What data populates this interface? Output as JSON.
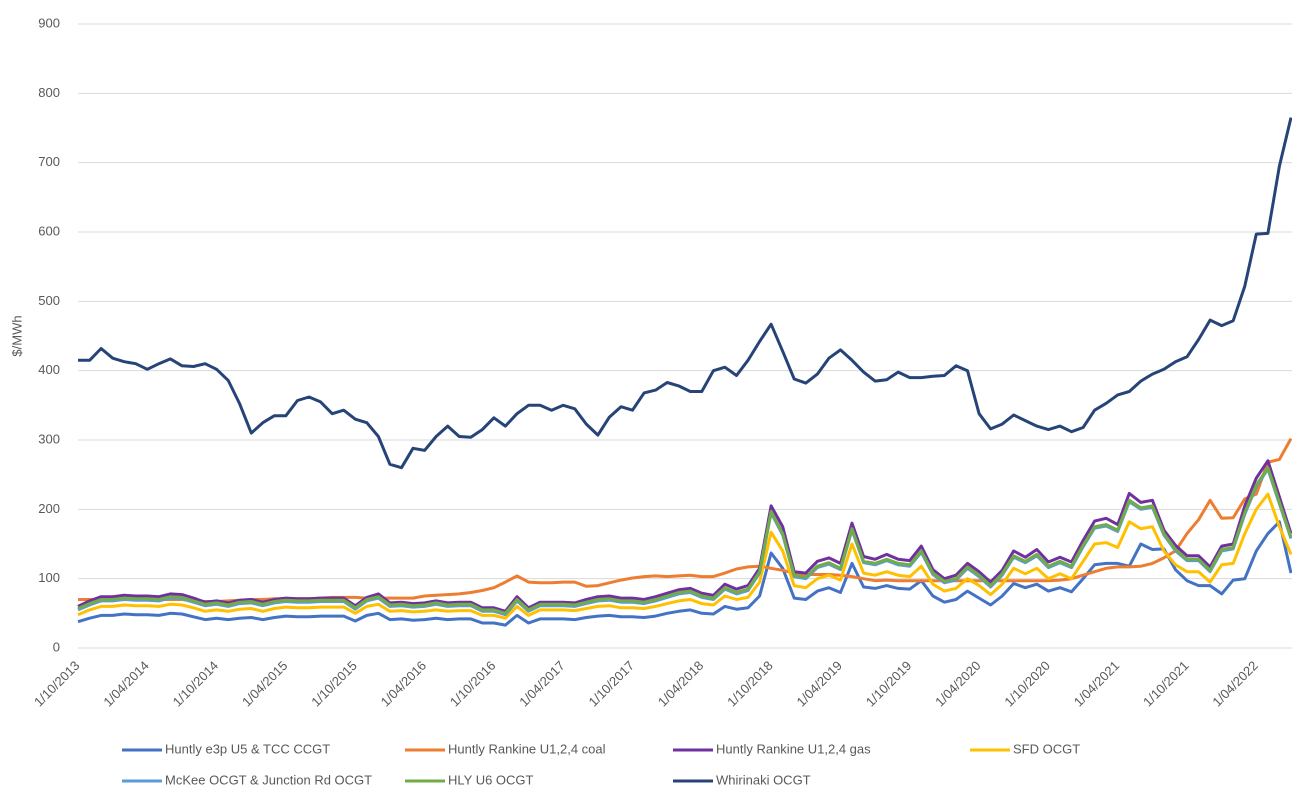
{
  "chart_data": {
    "type": "line",
    "y_label": "$/MWh",
    "ylim": [
      0,
      900
    ],
    "yticks": [
      0,
      100,
      200,
      300,
      400,
      500,
      600,
      700,
      800,
      900
    ],
    "grid": true,
    "categories": [
      "1/10/2013",
      null,
      null,
      null,
      null,
      null,
      "1/04/2014",
      null,
      null,
      null,
      null,
      null,
      "1/10/2014",
      null,
      null,
      null,
      null,
      null,
      "1/04/2015",
      null,
      null,
      null,
      null,
      null,
      "1/10/2015",
      null,
      null,
      null,
      null,
      null,
      "1/04/2016",
      null,
      null,
      null,
      null,
      null,
      "1/10/2016",
      null,
      null,
      null,
      null,
      null,
      "1/04/2017",
      null,
      null,
      null,
      null,
      null,
      "1/10/2017",
      null,
      null,
      null,
      null,
      null,
      "1/04/2018",
      null,
      null,
      null,
      null,
      null,
      "1/10/2018",
      null,
      null,
      null,
      null,
      null,
      "1/04/2019",
      null,
      null,
      null,
      null,
      null,
      "1/10/2019",
      null,
      null,
      null,
      null,
      null,
      "1/04/2020",
      null,
      null,
      null,
      null,
      null,
      "1/10/2020",
      null,
      null,
      null,
      null,
      null,
      "1/04/2021",
      null,
      null,
      null,
      null,
      null,
      "1/10/2021",
      null,
      null,
      null,
      null,
      null,
      "1/04/2022",
      null,
      null,
      null
    ],
    "series": [
      {
        "name": "Huntly e3p U5 & TCC CCGT",
        "color": "#4472c4",
        "values": [
          38,
          43,
          47,
          47,
          49,
          48,
          48,
          47,
          50,
          49,
          45,
          41,
          43,
          41,
          43,
          44,
          41,
          44,
          46,
          45,
          45,
          46,
          46,
          46,
          39,
          47,
          50,
          41,
          42,
          40,
          41,
          43,
          41,
          42,
          42,
          36,
          36,
          33,
          47,
          36,
          42,
          42,
          42,
          41,
          44,
          46,
          47,
          45,
          45,
          44,
          46,
          50,
          53,
          55,
          50,
          49,
          60,
          56,
          58,
          75,
          137,
          115,
          72,
          70,
          82,
          87,
          80,
          122,
          88,
          86,
          90,
          86,
          85,
          97,
          75,
          66,
          70,
          82,
          72,
          62,
          75,
          93,
          87,
          92,
          82,
          87,
          81,
          100,
          120,
          122,
          122,
          118,
          150,
          142,
          143,
          113,
          97,
          90,
          90,
          78,
          98,
          100,
          140,
          165,
          182,
          108
        ]
      },
      {
        "name": "Huntly Rankine U1,2,4 coal",
        "color": "#ed7d31",
        "values": [
          70,
          70,
          70,
          70,
          70,
          70,
          70,
          70,
          70,
          70,
          68,
          67,
          67,
          68,
          69,
          70,
          70,
          71,
          71,
          71,
          71,
          72,
          73,
          73,
          73,
          72,
          72,
          72,
          72,
          72,
          75,
          76,
          77,
          78,
          80,
          83,
          87,
          95,
          104,
          95,
          94,
          94,
          95,
          95,
          89,
          90,
          94,
          98,
          101,
          103,
          104,
          103,
          104,
          105,
          103,
          103,
          108,
          114,
          117,
          118,
          115,
          112,
          108,
          106,
          106,
          106,
          105,
          103,
          100,
          97,
          98,
          97,
          97,
          97,
          97,
          97,
          97,
          97,
          97,
          97,
          97,
          97,
          97,
          97,
          97,
          98,
          100,
          105,
          110,
          115,
          117,
          117,
          118,
          122,
          130,
          140,
          165,
          185,
          213,
          187,
          188,
          215,
          222,
          268,
          272,
          302
        ]
      },
      {
        "name": "Huntly Rankine U1,2,4 gas",
        "color": "#7030a0",
        "values": [
          60,
          68,
          74,
          74,
          76,
          75,
          75,
          74,
          78,
          77,
          72,
          66,
          68,
          65,
          69,
          70,
          66,
          70,
          72,
          71,
          71,
          72,
          72,
          72,
          61,
          73,
          78,
          65,
          66,
          64,
          65,
          68,
          65,
          66,
          66,
          58,
          58,
          53,
          74,
          58,
          66,
          66,
          66,
          65,
          70,
          74,
          75,
          72,
          72,
          70,
          74,
          79,
          84,
          86,
          79,
          76,
          92,
          85,
          90,
          115,
          205,
          175,
          110,
          108,
          125,
          130,
          122,
          180,
          132,
          128,
          135,
          128,
          126,
          147,
          113,
          100,
          105,
          122,
          110,
          95,
          112,
          140,
          131,
          142,
          124,
          131,
          124,
          155,
          183,
          187,
          178,
          223,
          210,
          213,
          170,
          148,
          133,
          133,
          117,
          147,
          150,
          205,
          245,
          270,
          218,
          165
        ]
      },
      {
        "name": "SFD OCGT",
        "color": "#ffc000",
        "values": [
          48,
          55,
          60,
          60,
          62,
          61,
          61,
          60,
          63,
          62,
          58,
          53,
          55,
          53,
          56,
          57,
          53,
          57,
          59,
          58,
          58,
          59,
          59,
          59,
          50,
          60,
          63,
          53,
          54,
          52,
          53,
          55,
          53,
          54,
          54,
          47,
          47,
          43,
          60,
          47,
          55,
          55,
          55,
          54,
          57,
          60,
          61,
          58,
          58,
          57,
          60,
          64,
          68,
          70,
          64,
          62,
          75,
          70,
          73,
          95,
          167,
          140,
          90,
          87,
          100,
          105,
          98,
          150,
          108,
          105,
          110,
          105,
          103,
          118,
          92,
          82,
          86,
          100,
          90,
          77,
          92,
          115,
          107,
          115,
          100,
          107,
          100,
          125,
          150,
          152,
          145,
          182,
          172,
          175,
          140,
          120,
          110,
          110,
          95,
          120,
          122,
          165,
          200,
          222,
          175,
          135
        ]
      },
      {
        "name": "McKee OCGT & Junction Rd OCGT",
        "color": "#5b9bd5",
        "values": [
          55,
          62,
          68,
          68,
          70,
          69,
          69,
          68,
          72,
          71,
          66,
          61,
          63,
          60,
          64,
          65,
          61,
          65,
          67,
          66,
          66,
          67,
          67,
          67,
          56,
          68,
          72,
          60,
          61,
          59,
          60,
          63,
          60,
          61,
          61,
          53,
          53,
          48,
          68,
          53,
          61,
          61,
          61,
          60,
          64,
          68,
          69,
          66,
          66,
          64,
          68,
          73,
          78,
          80,
          73,
          70,
          85,
          78,
          83,
          108,
          195,
          163,
          103,
          100,
          116,
          121,
          113,
          170,
          123,
          120,
          126,
          120,
          118,
          138,
          106,
          94,
          98,
          115,
          103,
          88,
          105,
          131,
          123,
          133,
          116,
          123,
          116,
          146,
          173,
          176,
          168,
          211,
          200,
          203,
          163,
          140,
          126,
          126,
          110,
          140,
          143,
          193,
          233,
          258,
          208,
          158
        ]
      },
      {
        "name": "HLY U6 OCGT",
        "color": "#70ad47",
        "values": [
          57,
          64,
          70,
          70,
          72,
          71,
          71,
          70,
          74,
          73,
          68,
          63,
          65,
          62,
          66,
          67,
          63,
          67,
          69,
          68,
          68,
          69,
          69,
          69,
          58,
          70,
          74,
          62,
          63,
          61,
          62,
          65,
          62,
          63,
          63,
          55,
          55,
          50,
          70,
          55,
          63,
          63,
          63,
          62,
          66,
          70,
          71,
          68,
          68,
          66,
          70,
          75,
          80,
          82,
          75,
          72,
          87,
          80,
          85,
          110,
          197,
          165,
          105,
          102,
          118,
          123,
          115,
          172,
          125,
          122,
          128,
          122,
          120,
          140,
          108,
          96,
          100,
          117,
          105,
          90,
          107,
          133,
          125,
          135,
          118,
          125,
          118,
          148,
          175,
          178,
          170,
          213,
          202,
          205,
          165,
          142,
          128,
          128,
          112,
          142,
          145,
          195,
          235,
          260,
          210,
          160
        ]
      },
      {
        "name": "Whirinaki OCGT",
        "color": "#264478",
        "values": [
          415,
          415,
          432,
          418,
          413,
          410,
          402,
          410,
          417,
          407,
          406,
          410,
          402,
          386,
          352,
          310,
          325,
          335,
          335,
          357,
          362,
          355,
          338,
          343,
          330,
          325,
          305,
          265,
          260,
          288,
          285,
          305,
          320,
          305,
          304,
          315,
          332,
          320,
          338,
          350,
          350,
          343,
          350,
          345,
          323,
          307,
          333,
          348,
          343,
          368,
          372,
          383,
          378,
          370,
          370,
          400,
          405,
          393,
          415,
          442,
          467,
          428,
          388,
          382,
          395,
          418,
          430,
          415,
          398,
          385,
          387,
          398,
          390,
          390,
          392,
          393,
          407,
          400,
          338,
          316,
          323,
          336,
          328,
          320,
          315,
          320,
          312,
          318,
          343,
          353,
          365,
          370,
          385,
          395,
          402,
          413,
          420,
          445,
          473,
          465,
          472,
          522,
          597,
          598,
          695,
          765
        ]
      }
    ]
  }
}
